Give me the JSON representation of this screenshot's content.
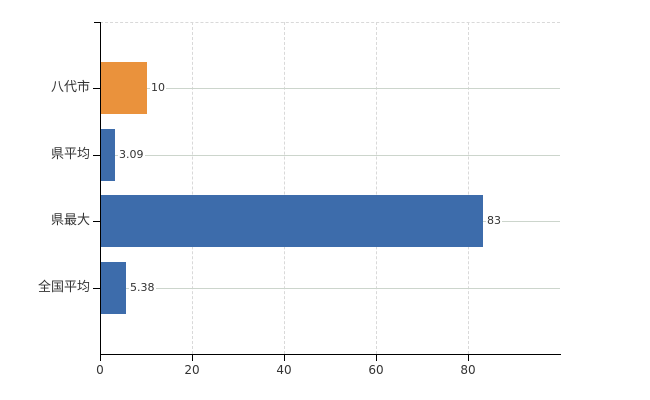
{
  "chart_data": {
    "type": "bar",
    "orientation": "horizontal",
    "title": "",
    "categories": [
      "八代市",
      "県平均",
      "県最大",
      "全国平均"
    ],
    "values": [
      10,
      3.09,
      83,
      5.38
    ],
    "value_labels": [
      "10",
      "3.09",
      "83",
      "5.38"
    ],
    "bar_colors": [
      "#ea923c",
      "#3d6cab",
      "#3d6cab",
      "#3d6cab"
    ],
    "x_ticks": [
      0,
      20,
      40,
      60,
      80
    ],
    "x_tick_labels": [
      "0",
      "20",
      "40",
      "60",
      "80"
    ],
    "xlim": [
      0,
      100
    ],
    "xlabel": "",
    "ylabel": "",
    "legend": null,
    "grid": {
      "vertical_style": "dashed",
      "horizontal_style": "solid"
    },
    "colors": {
      "orange_bar": "#ea923c",
      "blue_bar": "#3d6cab",
      "axis": "#000000",
      "grid_vertical": "#d9d9d9",
      "grid_horizontal": "#ccd5cc",
      "text": "#333333",
      "background": "#ffffff"
    }
  }
}
